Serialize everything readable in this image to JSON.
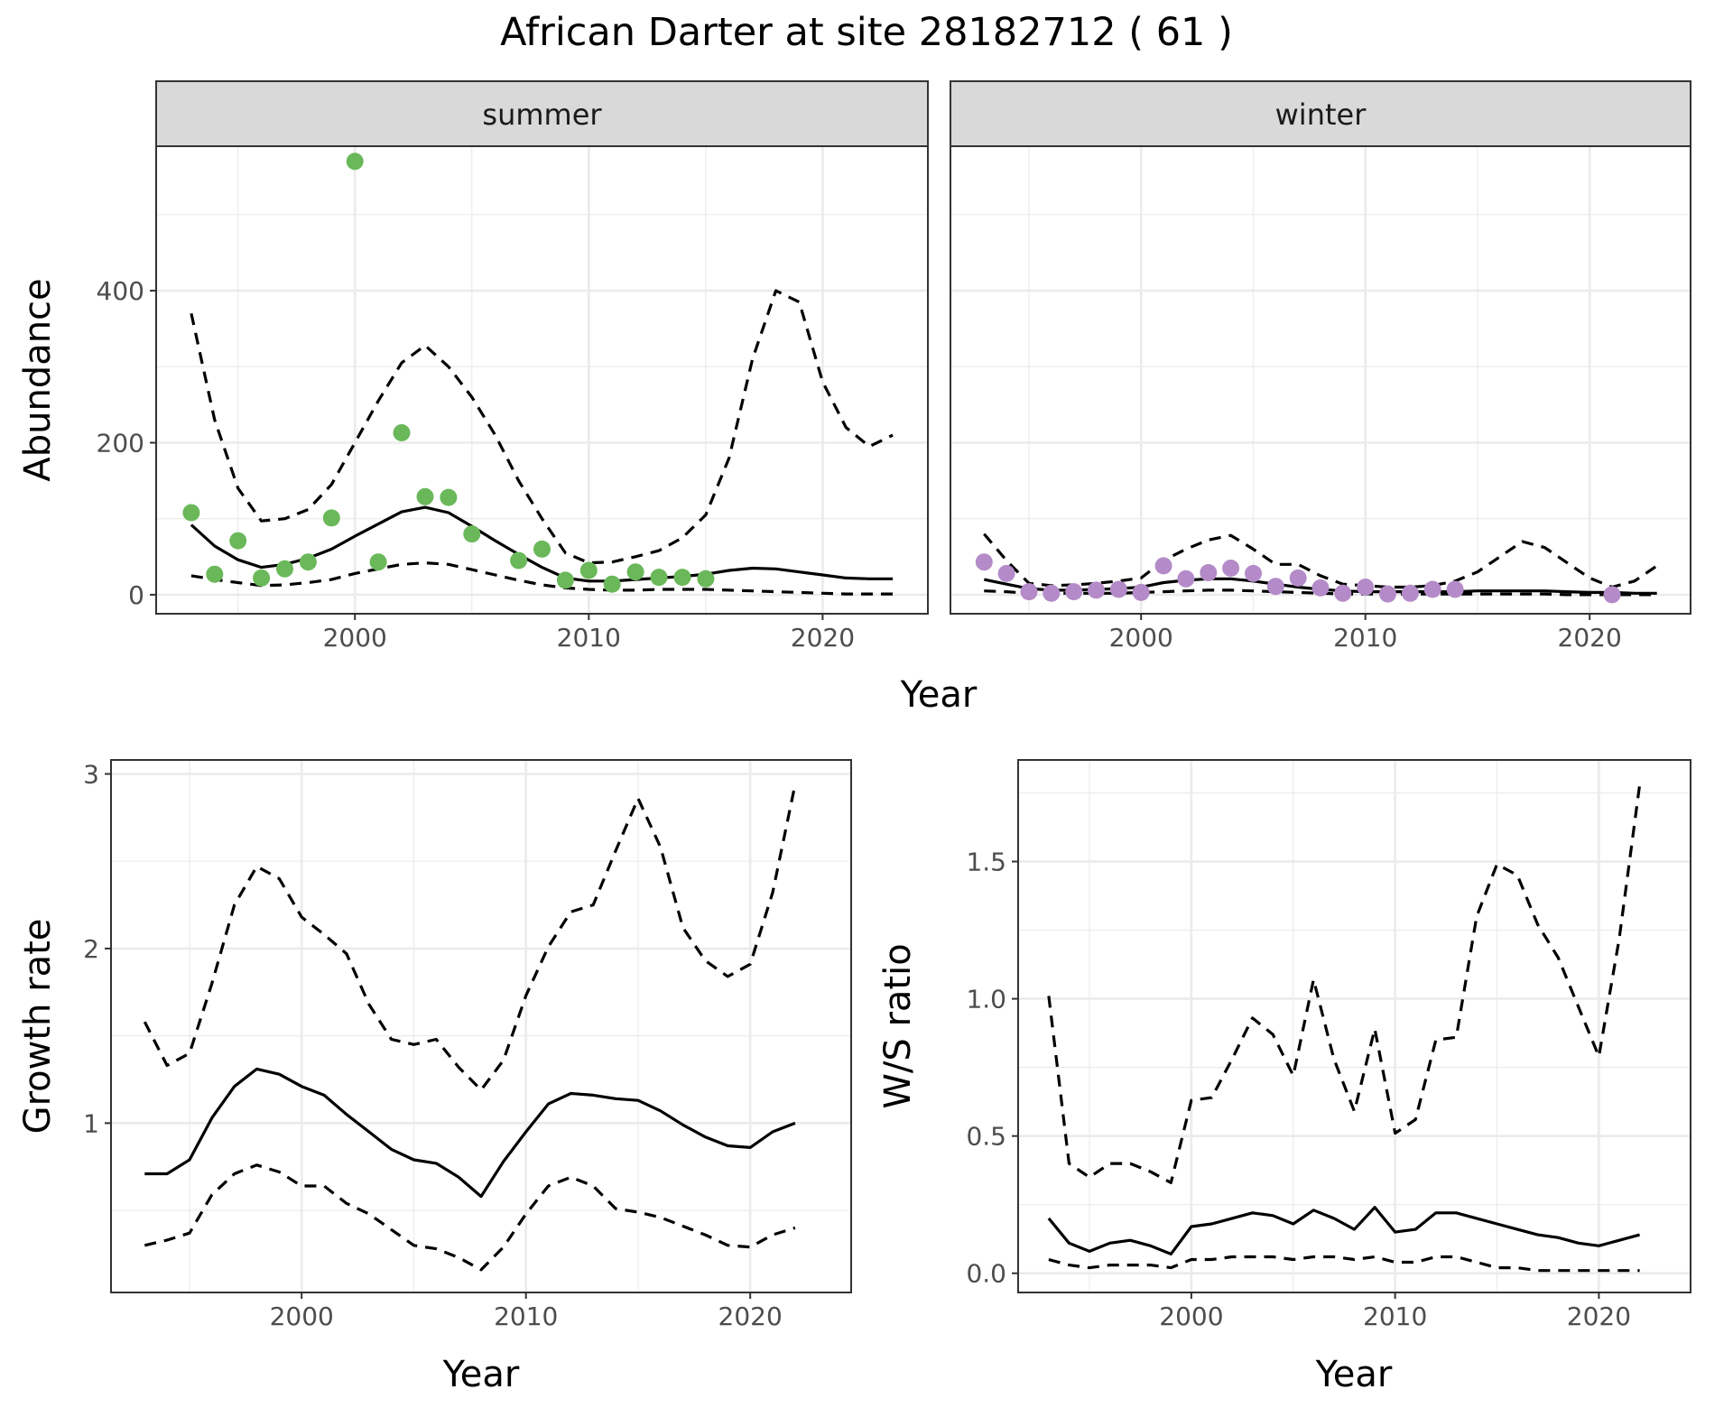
{
  "figure": {
    "title": "African Darter at site 28182712 ( 61 )"
  },
  "colors": {
    "summer_points": "#6ab85a",
    "winter_points": "#b48bc8",
    "lines": "#000000",
    "grid": "#ebebeb",
    "strip_fill": "#d9d9d9",
    "panel_border": "#333333"
  },
  "chart_data": [
    {
      "id": "abundance-summer",
      "type": "line",
      "facet": "summer",
      "xlabel": "Year",
      "ylabel": "Abundance",
      "xlim": [
        1991.5,
        2024.5
      ],
      "ylim": [
        -25,
        590
      ],
      "xticks": [
        2000,
        2010,
        2020
      ],
      "yticks": [
        0,
        200,
        400
      ],
      "grid": true,
      "points": {
        "x": [
          1993,
          1994,
          1995,
          1996,
          1997,
          1998,
          1999,
          2000,
          2001,
          2002,
          2003,
          2004,
          2005,
          2007,
          2008,
          2009,
          2010,
          2011,
          2012,
          2013,
          2014,
          2015
        ],
        "y": [
          108,
          27,
          71,
          22,
          34,
          43,
          101,
          570,
          43,
          213,
          129,
          128,
          80,
          45,
          60,
          19,
          32,
          14,
          30,
          23,
          23,
          21
        ]
      },
      "series": [
        {
          "style": "solid",
          "x": [
            1993,
            1994,
            1995,
            1996,
            1997,
            1998,
            1999,
            2000,
            2001,
            2002,
            2003,
            2004,
            2005,
            2006,
            2007,
            2008,
            2009,
            2010,
            2011,
            2012,
            2013,
            2014,
            2015,
            2016,
            2017,
            2018,
            2019,
            2020,
            2021,
            2022,
            2023
          ],
          "y": [
            92,
            64,
            46,
            36,
            40,
            48,
            60,
            77,
            93,
            109,
            115,
            108,
            90,
            71,
            53,
            36,
            22,
            18,
            18,
            20,
            22,
            24,
            27,
            32,
            35,
            34,
            30,
            26,
            22,
            21,
            21
          ]
        },
        {
          "style": "dashed",
          "x": [
            1993,
            1994,
            1995,
            1996,
            1997,
            1998,
            1999,
            2000,
            2001,
            2002,
            2003,
            2004,
            2005,
            2006,
            2007,
            2008,
            2009,
            2010,
            2011,
            2012,
            2013,
            2014,
            2015,
            2016,
            2017,
            2018,
            2019,
            2020,
            2021,
            2022,
            2023
          ],
          "y": [
            370,
            230,
            140,
            97,
            100,
            112,
            145,
            200,
            255,
            305,
            328,
            300,
            260,
            210,
            150,
            100,
            55,
            42,
            43,
            50,
            58,
            75,
            105,
            180,
            310,
            400,
            385,
            280,
            220,
            195,
            210
          ]
        },
        {
          "style": "dashed",
          "x": [
            1993,
            1994,
            1995,
            1996,
            1997,
            1998,
            1999,
            2000,
            2001,
            2002,
            2003,
            2004,
            2005,
            2006,
            2007,
            2008,
            2009,
            2010,
            2011,
            2012,
            2013,
            2014,
            2015,
            2016,
            2017,
            2018,
            2019,
            2020,
            2021,
            2022,
            2023
          ],
          "y": [
            25,
            20,
            16,
            12,
            13,
            16,
            20,
            28,
            34,
            40,
            42,
            40,
            33,
            26,
            19,
            13,
            9,
            7,
            6,
            6,
            7,
            7,
            7,
            6,
            5,
            4,
            3,
            2,
            1,
            1,
            1
          ]
        }
      ]
    },
    {
      "id": "abundance-winter",
      "type": "line",
      "facet": "winter",
      "xlim": [
        1991.5,
        2024.5
      ],
      "ylim": [
        -25,
        590
      ],
      "xticks": [
        2000,
        2010,
        2020
      ],
      "yticks": [
        0,
        200,
        400
      ],
      "grid": true,
      "points": {
        "x": [
          1993,
          1994,
          1995,
          1996,
          1997,
          1998,
          1999,
          2000,
          2001,
          2002,
          2003,
          2004,
          2005,
          2006,
          2007,
          2008,
          2009,
          2010,
          2011,
          2012,
          2013,
          2014,
          2021
        ],
        "y": [
          43,
          28,
          4,
          2,
          4,
          6,
          7,
          3,
          38,
          21,
          29,
          35,
          28,
          11,
          22,
          9,
          2,
          10,
          1,
          2,
          7,
          7,
          0
        ]
      },
      "series": [
        {
          "style": "solid",
          "x": [
            1993,
            1994,
            1995,
            1996,
            1997,
            1998,
            1999,
            2000,
            2001,
            2002,
            2003,
            2004,
            2005,
            2006,
            2007,
            2008,
            2009,
            2010,
            2011,
            2012,
            2013,
            2014,
            2015,
            2016,
            2017,
            2018,
            2019,
            2020,
            2021,
            2022,
            2023
          ],
          "y": [
            20,
            14,
            8,
            6,
            6,
            7,
            8,
            10,
            16,
            19,
            21,
            21,
            18,
            14,
            10,
            7,
            5,
            4,
            4,
            4,
            4,
            4,
            5,
            5,
            5,
            5,
            4,
            3,
            3,
            2,
            2
          ]
        },
        {
          "style": "dashed",
          "x": [
            1993,
            1994,
            1995,
            1996,
            1997,
            1998,
            1999,
            2000,
            2001,
            2002,
            2003,
            2004,
            2005,
            2006,
            2007,
            2008,
            2009,
            2010,
            2011,
            2012,
            2013,
            2014,
            2015,
            2016,
            2017,
            2018,
            2019,
            2020,
            2021,
            2022,
            2023
          ],
          "y": [
            80,
            45,
            15,
            12,
            13,
            15,
            18,
            22,
            45,
            60,
            72,
            78,
            60,
            40,
            40,
            25,
            14,
            12,
            10,
            10,
            12,
            18,
            30,
            50,
            70,
            62,
            42,
            22,
            10,
            18,
            38
          ]
        },
        {
          "style": "dashed",
          "x": [
            1993,
            1994,
            1995,
            1996,
            1997,
            1998,
            1999,
            2000,
            2001,
            2002,
            2003,
            2004,
            2005,
            2006,
            2007,
            2008,
            2009,
            2010,
            2011,
            2012,
            2013,
            2014,
            2015,
            2016,
            2017,
            2018,
            2019,
            2020,
            2021,
            2022,
            2023
          ],
          "y": [
            5,
            4,
            2,
            2,
            2,
            2,
            2,
            3,
            4,
            5,
            6,
            6,
            5,
            4,
            3,
            2,
            1,
            1,
            1,
            1,
            1,
            1,
            1,
            1,
            1,
            1,
            0,
            0,
            0,
            0,
            0
          ]
        }
      ]
    },
    {
      "id": "growth-rate",
      "type": "line",
      "xlabel": "Year",
      "ylabel": "Growth rate",
      "xlim": [
        1991.5,
        2024.5
      ],
      "ylim": [
        0.03,
        3.08
      ],
      "xticks": [
        2000,
        2010,
        2020
      ],
      "yticks": [
        1,
        2,
        3
      ],
      "grid": true,
      "series": [
        {
          "style": "solid",
          "x": [
            1993,
            1994,
            1995,
            1996,
            1997,
            1998,
            1999,
            2000,
            2001,
            2002,
            2003,
            2004,
            2005,
            2006,
            2007,
            2008,
            2009,
            2010,
            2011,
            2012,
            2013,
            2014,
            2015,
            2016,
            2017,
            2018,
            2019,
            2020,
            2021,
            2022
          ],
          "y": [
            0.71,
            0.71,
            0.79,
            1.03,
            1.21,
            1.31,
            1.28,
            1.21,
            1.16,
            1.05,
            0.95,
            0.85,
            0.79,
            0.77,
            0.69,
            0.58,
            0.78,
            0.95,
            1.11,
            1.17,
            1.16,
            1.14,
            1.13,
            1.07,
            0.99,
            0.92,
            0.87,
            0.86,
            0.95,
            1.0
          ]
        },
        {
          "style": "dashed",
          "x": [
            1993,
            1994,
            1995,
            1996,
            1997,
            1998,
            1999,
            2000,
            2001,
            2002,
            2003,
            2004,
            2005,
            2006,
            2007,
            2008,
            2009,
            2010,
            2011,
            2012,
            2013,
            2014,
            2015,
            2016,
            2017,
            2018,
            2019,
            2020,
            2021,
            2022
          ],
          "y": [
            1.58,
            1.33,
            1.4,
            1.8,
            2.25,
            2.47,
            2.4,
            2.18,
            2.08,
            1.97,
            1.68,
            1.48,
            1.45,
            1.48,
            1.32,
            1.19,
            1.36,
            1.73,
            2.01,
            2.21,
            2.25,
            2.56,
            2.86,
            2.58,
            2.12,
            1.93,
            1.84,
            1.91,
            2.32,
            2.94
          ]
        },
        {
          "style": "dashed",
          "x": [
            1993,
            1994,
            1995,
            1996,
            1997,
            1998,
            1999,
            2000,
            2001,
            2002,
            2003,
            2004,
            2005,
            2006,
            2007,
            2008,
            2009,
            2010,
            2011,
            2012,
            2013,
            2014,
            2015,
            2016,
            2017,
            2018,
            2019,
            2020,
            2021,
            2022
          ],
          "y": [
            0.3,
            0.33,
            0.37,
            0.59,
            0.71,
            0.76,
            0.72,
            0.64,
            0.64,
            0.54,
            0.48,
            0.39,
            0.3,
            0.28,
            0.23,
            0.16,
            0.29,
            0.48,
            0.64,
            0.69,
            0.64,
            0.51,
            0.49,
            0.46,
            0.41,
            0.36,
            0.3,
            0.29,
            0.36,
            0.4
          ]
        }
      ]
    },
    {
      "id": "ws-ratio",
      "type": "line",
      "xlabel": "Year",
      "ylabel": "W/S ratio",
      "xlim": [
        1991.5,
        2024.5
      ],
      "ylim": [
        -0.07,
        1.87
      ],
      "xticks": [
        2000,
        2010,
        2020
      ],
      "yticks": [
        0.0,
        0.5,
        1.0,
        1.5
      ],
      "ytick_labels": [
        "0.0",
        "0.5",
        "1.0",
        "1.5"
      ],
      "grid": true,
      "series": [
        {
          "style": "solid",
          "x": [
            1993,
            1994,
            1995,
            1996,
            1997,
            1998,
            1999,
            2000,
            2001,
            2002,
            2003,
            2004,
            2005,
            2006,
            2007,
            2008,
            2009,
            2010,
            2011,
            2012,
            2013,
            2014,
            2015,
            2016,
            2017,
            2018,
            2019,
            2020,
            2021,
            2022
          ],
          "y": [
            0.2,
            0.11,
            0.08,
            0.11,
            0.12,
            0.1,
            0.07,
            0.17,
            0.18,
            0.2,
            0.22,
            0.21,
            0.18,
            0.23,
            0.2,
            0.16,
            0.24,
            0.15,
            0.16,
            0.22,
            0.22,
            0.2,
            0.18,
            0.16,
            0.14,
            0.13,
            0.11,
            0.1,
            0.12,
            0.14
          ]
        },
        {
          "style": "dashed",
          "x": [
            1993,
            1994,
            1995,
            1996,
            1997,
            1998,
            1999,
            2000,
            2001,
            2002,
            2003,
            2004,
            2005,
            2006,
            2007,
            2008,
            2009,
            2010,
            2011,
            2012,
            2013,
            2014,
            2015,
            2016,
            2017,
            2018,
            2019,
            2020,
            2021,
            2022
          ],
          "y": [
            1.01,
            0.4,
            0.35,
            0.4,
            0.4,
            0.37,
            0.33,
            0.63,
            0.64,
            0.78,
            0.93,
            0.87,
            0.72,
            1.07,
            0.78,
            0.59,
            0.89,
            0.51,
            0.56,
            0.85,
            0.86,
            1.3,
            1.49,
            1.45,
            1.27,
            1.15,
            0.97,
            0.79,
            1.22,
            1.78
          ]
        },
        {
          "style": "dashed",
          "x": [
            1993,
            1994,
            1995,
            1996,
            1997,
            1998,
            1999,
            2000,
            2001,
            2002,
            2003,
            2004,
            2005,
            2006,
            2007,
            2008,
            2009,
            2010,
            2011,
            2012,
            2013,
            2014,
            2015,
            2016,
            2017,
            2018,
            2019,
            2020,
            2021,
            2022
          ],
          "y": [
            0.05,
            0.03,
            0.02,
            0.03,
            0.03,
            0.03,
            0.02,
            0.05,
            0.05,
            0.06,
            0.06,
            0.06,
            0.05,
            0.06,
            0.06,
            0.05,
            0.06,
            0.04,
            0.04,
            0.06,
            0.06,
            0.04,
            0.02,
            0.02,
            0.01,
            0.01,
            0.01,
            0.01,
            0.01,
            0.01
          ]
        }
      ]
    }
  ]
}
